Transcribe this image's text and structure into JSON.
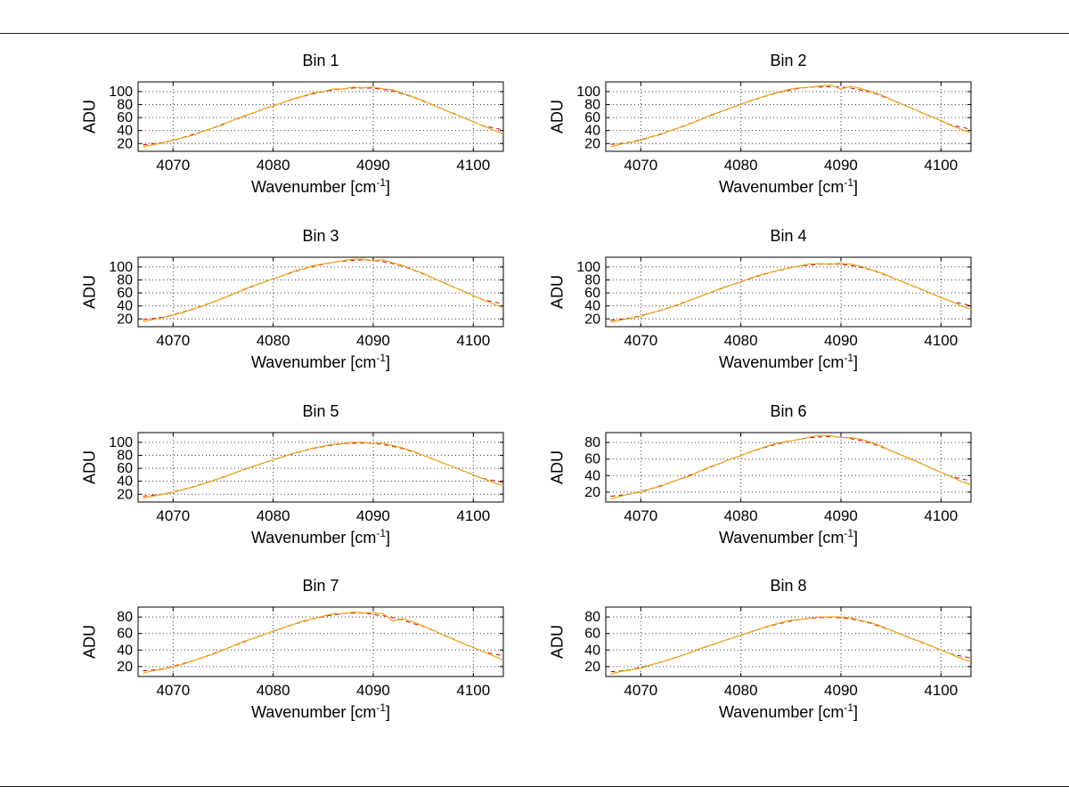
{
  "figure": {
    "background": "#ffffff",
    "border_color": "#1a1a1a"
  },
  "labels": {
    "xlabel_pre": "Wavenumber [cm",
    "xlabel_sup": "-1",
    "xlabel_post": "]",
    "ylabel": "ADU"
  },
  "chart_data": {
    "type": "line",
    "layout": "4x2 subplot grid",
    "grid": true,
    "legend": "none",
    "series_color": "#e8a419",
    "fit_color": "#d40000",
    "xlabel": "Wavenumber [cm^-1]",
    "ylabel": "ADU",
    "xlim": [
      4066.5,
      4103
    ],
    "xticks": [
      4070,
      4080,
      4090,
      4100
    ],
    "x": [
      4067,
      4068,
      4069,
      4070,
      4071,
      4072,
      4073,
      4074,
      4075,
      4076,
      4077,
      4078,
      4079,
      4080,
      4081,
      4082,
      4083,
      4084,
      4085,
      4086,
      4087,
      4088,
      4089,
      4090,
      4091,
      4092,
      4093,
      4094,
      4095,
      4096,
      4097,
      4098,
      4099,
      4100,
      4101,
      4102,
      4103
    ],
    "charts": [
      {
        "title": "Bin 1",
        "ylabel": "ADU",
        "yticks": [
          20,
          40,
          60,
          80,
          100
        ],
        "ylim": [
          8,
          115
        ],
        "values": [
          15,
          18,
          21,
          25,
          29,
          33,
          39,
          44,
          49,
          56,
          62,
          67,
          73,
          78,
          83,
          89,
          93,
          98,
          100,
          104,
          104,
          107,
          106,
          107,
          104,
          103,
          97,
          92,
          86,
          79,
          73,
          66,
          60,
          54,
          47,
          41,
          35
        ]
      },
      {
        "title": "Bin 2",
        "ylabel": "ADU",
        "yticks": [
          20,
          40,
          60,
          80,
          100
        ],
        "ylim": [
          8,
          115
        ],
        "values": [
          15,
          19,
          22,
          25,
          30,
          34,
          40,
          45,
          51,
          57,
          64,
          69,
          75,
          80,
          86,
          91,
          96,
          100,
          104,
          106,
          107,
          109,
          110,
          104,
          108,
          105,
          100,
          95,
          88,
          81,
          75,
          68,
          62,
          55,
          48,
          42,
          36
        ]
      },
      {
        "title": "Bin 3",
        "ylabel": "ADU",
        "yticks": [
          20,
          40,
          60,
          80,
          100
        ],
        "ylim": [
          8,
          115
        ],
        "values": [
          16,
          19,
          22,
          26,
          30,
          35,
          40,
          46,
          52,
          58,
          65,
          71,
          76,
          82,
          87,
          93,
          97,
          102,
          105,
          107,
          110,
          112,
          112,
          110,
          111,
          106,
          102,
          96,
          90,
          83,
          76,
          69,
          63,
          56,
          49,
          43,
          37
        ]
      },
      {
        "title": "Bin 4",
        "ylabel": "ADU",
        "yticks": [
          20,
          40,
          60,
          80,
          100
        ],
        "ylim": [
          8,
          115
        ],
        "values": [
          15,
          18,
          21,
          24,
          29,
          33,
          38,
          43,
          49,
          55,
          61,
          67,
          72,
          77,
          83,
          88,
          92,
          96,
          99,
          102,
          105,
          105,
          104,
          106,
          104,
          101,
          96,
          91,
          85,
          78,
          72,
          66,
          59,
          53,
          47,
          40,
          35
        ]
      },
      {
        "title": "Bin 5",
        "ylabel": "ADU",
        "yticks": [
          20,
          40,
          60,
          80,
          100
        ],
        "ylim": [
          8,
          115
        ],
        "values": [
          14,
          17,
          20,
          23,
          27,
          31,
          36,
          41,
          46,
          52,
          58,
          63,
          68,
          73,
          78,
          83,
          87,
          91,
          94,
          97,
          98,
          100,
          100,
          98,
          99,
          95,
          91,
          86,
          80,
          74,
          68,
          62,
          56,
          50,
          44,
          38,
          33
        ]
      },
      {
        "title": "Bin 6",
        "ylabel": "ADU",
        "yticks": [
          20,
          40,
          60,
          80
        ],
        "ylim": [
          8,
          92
        ],
        "values": [
          12,
          15,
          18,
          20,
          24,
          27,
          32,
          36,
          40,
          46,
          51,
          55,
          60,
          64,
          69,
          73,
          77,
          80,
          82,
          84,
          87,
          89,
          88,
          86,
          86,
          84,
          80,
          76,
          70,
          65,
          60,
          55,
          49,
          44,
          39,
          33,
          29
        ]
      },
      {
        "title": "Bin 7",
        "ylabel": "ADU",
        "yticks": [
          20,
          40,
          60,
          80
        ],
        "ylim": [
          8,
          92
        ],
        "values": [
          12,
          15,
          17,
          20,
          23,
          27,
          31,
          35,
          40,
          45,
          50,
          54,
          58,
          63,
          67,
          71,
          75,
          78,
          81,
          84,
          84,
          86,
          85,
          85,
          84,
          75,
          78,
          74,
          69,
          64,
          58,
          53,
          48,
          43,
          38,
          33,
          28
        ]
      },
      {
        "title": "Bin 8",
        "ylabel": "ADU",
        "yticks": [
          20,
          40,
          60,
          80
        ],
        "ylim": [
          8,
          92
        ],
        "values": [
          11,
          14,
          16,
          18,
          22,
          25,
          29,
          33,
          37,
          42,
          46,
          50,
          54,
          58,
          62,
          66,
          70,
          73,
          76,
          77,
          79,
          80,
          80,
          80,
          79,
          76,
          73,
          69,
          64,
          59,
          54,
          50,
          45,
          40,
          35,
          30,
          26
        ]
      }
    ]
  }
}
